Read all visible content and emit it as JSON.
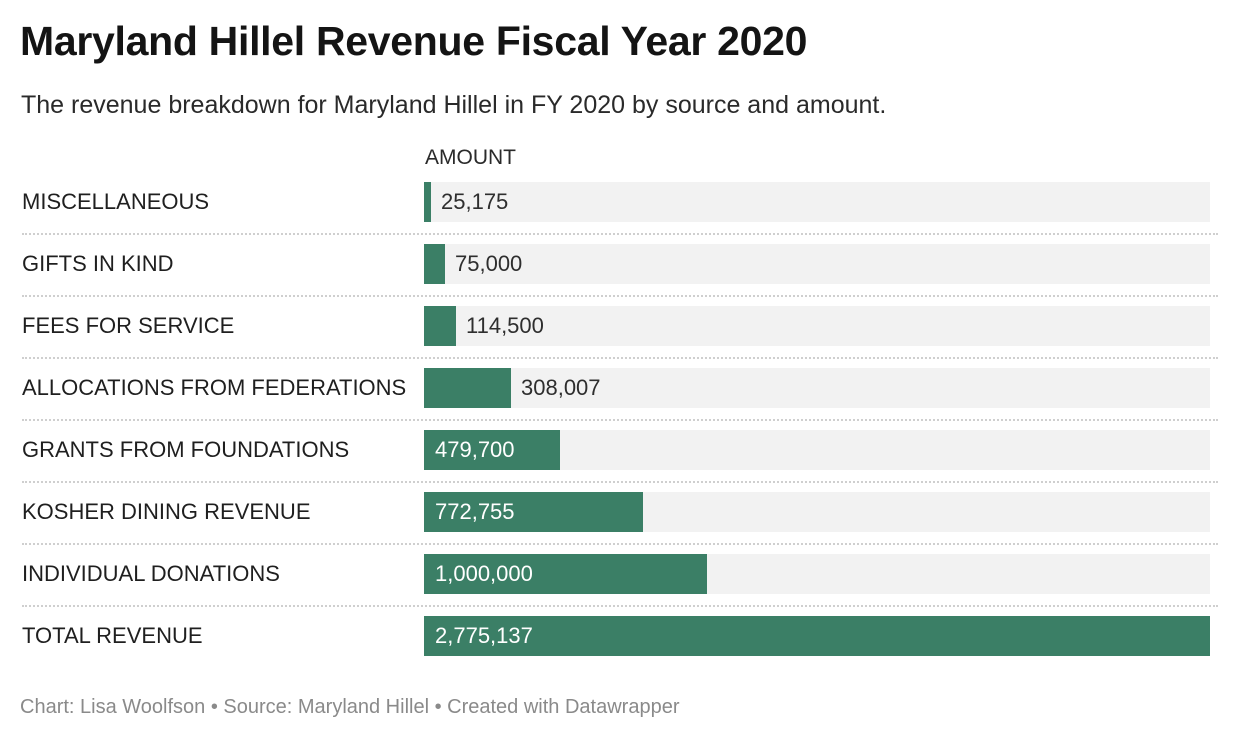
{
  "header": {
    "title": "Maryland Hillel Revenue Fiscal Year 2020",
    "subtitle": "The revenue breakdown for Maryland Hillel in FY 2020 by source and amount.",
    "column_header": "AMOUNT"
  },
  "footer": {
    "text": "Chart: Lisa Woolfson • Source: Maryland Hillel • Created with Datawrapper"
  },
  "colors": {
    "bar": "#3b7f66",
    "track": "#f2f2f2"
  },
  "chart_data": {
    "type": "bar",
    "orientation": "horizontal",
    "title": "Maryland Hillel Revenue Fiscal Year 2020",
    "subtitle": "The revenue breakdown for Maryland Hillel in FY 2020 by source and amount.",
    "value_column": "AMOUNT",
    "xlim": [
      0,
      2775137
    ],
    "grid": false,
    "legend": "none",
    "categories": [
      "MISCELLANEOUS",
      "GIFTS IN KIND",
      "FEES FOR SERVICE",
      "ALLOCATIONS FROM FEDERATIONS",
      "GRANTS FROM FOUNDATIONS",
      "KOSHER DINING REVENUE",
      "INDIVIDUAL DONATIONS",
      "TOTAL REVENUE"
    ],
    "values": [
      25175,
      75000,
      114500,
      308007,
      479700,
      772755,
      1000000,
      2775137
    ],
    "labels": [
      "25,175",
      "75,000",
      "114,500",
      "308,007",
      "479,700",
      "772,755",
      "1,000,000",
      "2,775,137"
    ]
  }
}
